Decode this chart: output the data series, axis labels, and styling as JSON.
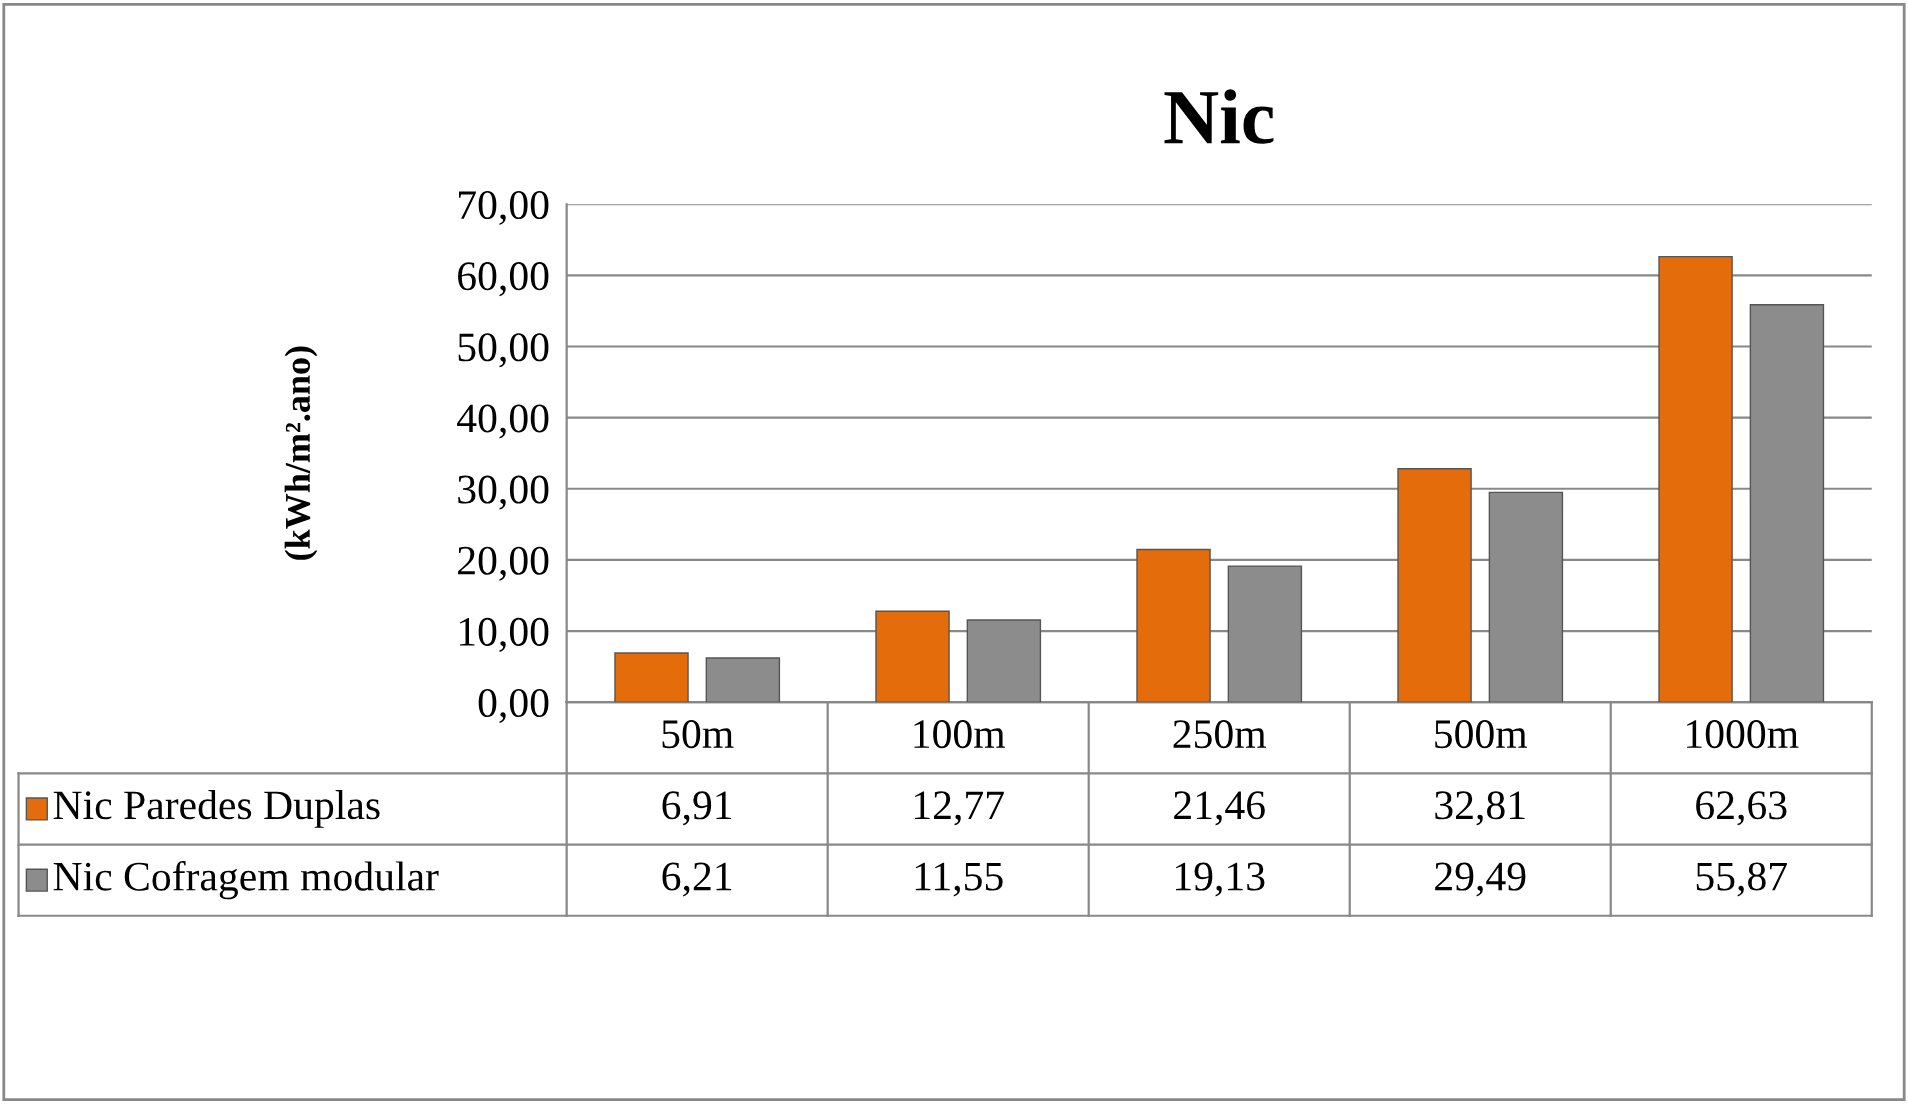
{
  "chart_data": {
    "type": "bar",
    "title": "Nic",
    "ylabel": "(kWh/m².ano)",
    "categories": [
      "50m",
      "100m",
      "250m",
      "500m",
      "1000m"
    ],
    "series": [
      {
        "name": "Nic Paredes Duplas",
        "color": "#e46c0a",
        "values": [
          6.91,
          12.77,
          21.46,
          32.81,
          62.63
        ],
        "value_labels": [
          "6,91",
          "12,77",
          "21,46",
          "32,81",
          "62,63"
        ]
      },
      {
        "name": "Nic Cofragem modular",
        "color": "#8c8c8c",
        "values": [
          6.21,
          11.55,
          19.13,
          29.49,
          55.87
        ],
        "value_labels": [
          "6,21",
          "11,55",
          "19,13",
          "29,49",
          "55,87"
        ]
      }
    ],
    "ylim": [
      0,
      70
    ],
    "yticks": [
      {
        "value": 0,
        "label": "0,00"
      },
      {
        "value": 10,
        "label": "10,00"
      },
      {
        "value": 20,
        "label": "20,00"
      },
      {
        "value": 30,
        "label": "30,00"
      },
      {
        "value": 40,
        "label": "40,00"
      },
      {
        "value": 50,
        "label": "50,00"
      },
      {
        "value": 60,
        "label": "60,00"
      },
      {
        "value": 70,
        "label": "70,00"
      }
    ],
    "grid": "y",
    "legend": "bottom"
  }
}
